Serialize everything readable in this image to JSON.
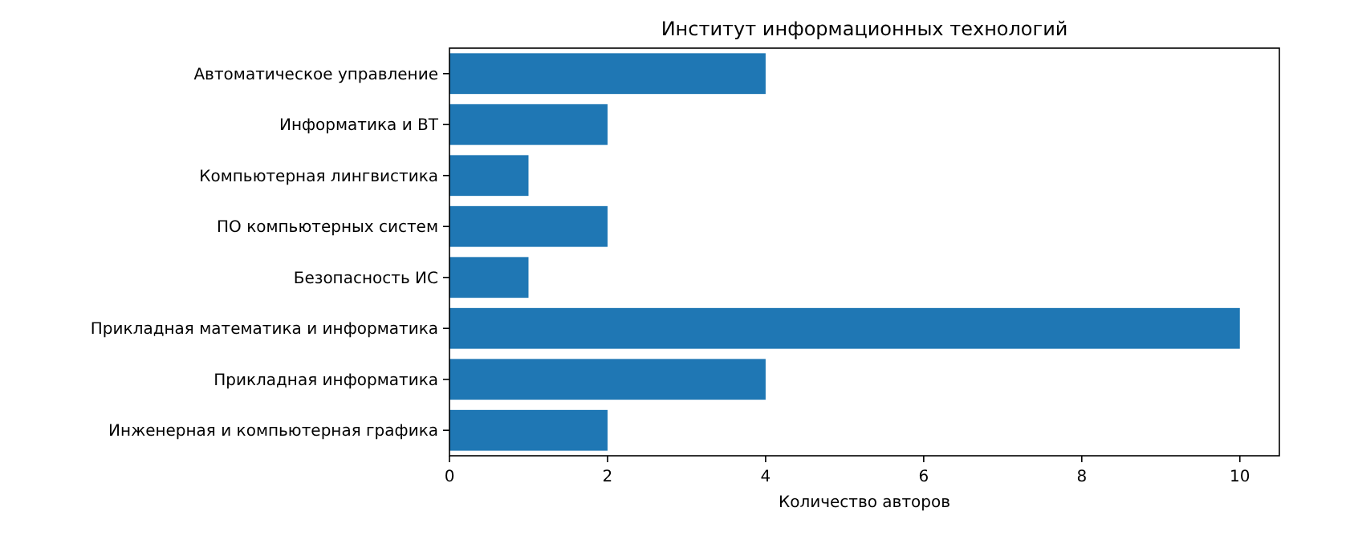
{
  "chart_data": {
    "type": "bar",
    "orientation": "horizontal",
    "title": "Институт информационных технологий",
    "xlabel": "Количество авторов",
    "categories": [
      "Автоматическое управление",
      "Информатика и ВТ",
      "Компьютерная лингвистика",
      "ПО компьютерных систем",
      "Безопасность ИС",
      "Прикладная математика и информатика",
      "Прикладная информатика",
      "Инженерная и компьютерная графика"
    ],
    "values": [
      4,
      2,
      1,
      2,
      1,
      10,
      4,
      2
    ],
    "color": "#1f77b4",
    "xlim": [
      0,
      10.5
    ],
    "xticks": [
      0,
      2,
      4,
      6,
      8,
      10
    ],
    "grid": false
  }
}
